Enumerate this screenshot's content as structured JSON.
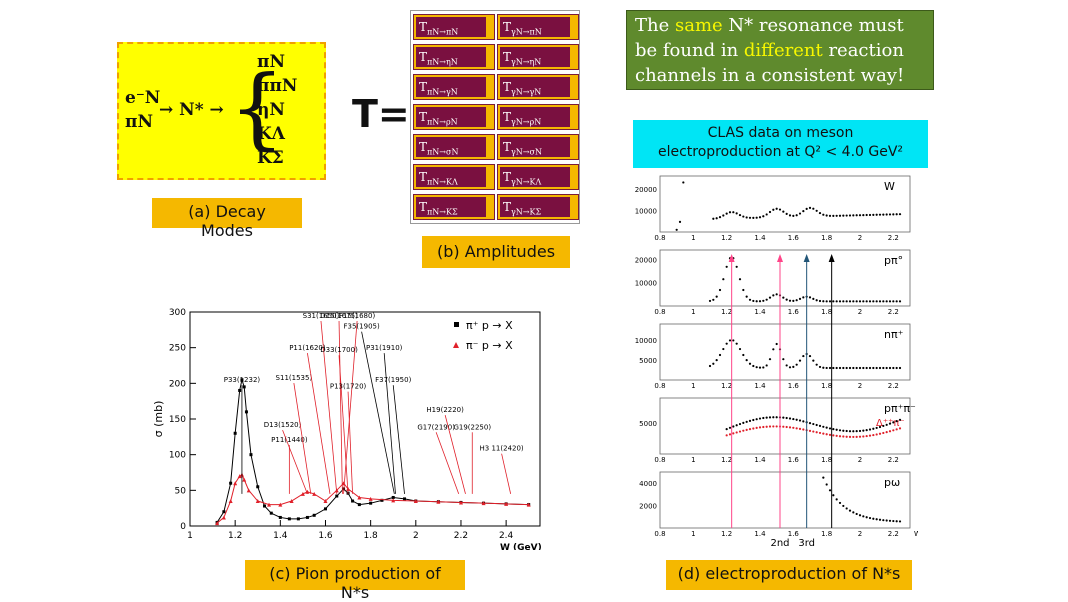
{
  "decay": {
    "initial_1": "e⁻N",
    "initial_2": "πN",
    "resonance": "→ N* →",
    "brace": "{",
    "channels": [
      "πN",
      "ππN",
      "ηN",
      "KΛ",
      "KΣ"
    ]
  },
  "caption_a": "(a) Decay Modes",
  "t_equals": "T=",
  "amplitudes": {
    "left": [
      "πN→πN",
      "πN→ηN",
      "πN→γN",
      "πN→ρN",
      "πN→σN",
      "πN→KΛ",
      "πN→KΣ"
    ],
    "right": [
      "γN→πN",
      "γN→ηN",
      "γN→γN",
      "γN→ρN",
      "γN→σN",
      "γN→KΛ",
      "γN→KΣ"
    ],
    "symbol": "T"
  },
  "caption_b": "(b) Amplitudes",
  "green_box": {
    "p1": "The ",
    "h1": "same",
    "p2": " N* resonance must be found in ",
    "h2": "different",
    "p3": " reaction channels in a consistent way!"
  },
  "clas_box": {
    "line1": "CLAS data on meson",
    "line2": "electroproduction at Q² < 4.0 GeV²"
  },
  "caption_c": "(c) Pion production of N*s",
  "caption_d": "(d) electroproduction of N*s",
  "colors": {
    "highlight": "#f7f700",
    "green": "#5f8a2d",
    "caption": "#f5b800",
    "cyan": "#00e5f5",
    "amp_cell": "#7a1040",
    "red": "#e0202a"
  },
  "chart_data": [
    {
      "type": "scatter",
      "title": "",
      "xlabel": "W (GeV)",
      "ylabel": "σ (mb)",
      "xlim": [
        1.0,
        2.55
      ],
      "ylim": [
        0,
        300
      ],
      "xticks": [
        "1",
        "1.2",
        "1.4",
        "1.6",
        "1.8",
        "2",
        "2.2",
        "2.4"
      ],
      "yticks": [
        "0",
        "50",
        "100",
        "150",
        "200",
        "250",
        "300"
      ],
      "legend_placement": "top-right",
      "series": [
        {
          "name": "π⁺ p → X",
          "color": "#000000",
          "x": [
            1.12,
            1.15,
            1.18,
            1.2,
            1.22,
            1.23,
            1.24,
            1.25,
            1.27,
            1.3,
            1.33,
            1.36,
            1.4,
            1.44,
            1.48,
            1.52,
            1.55,
            1.6,
            1.65,
            1.68,
            1.7,
            1.72,
            1.75,
            1.8,
            1.85,
            1.9,
            1.95,
            2.0,
            2.1,
            2.2,
            2.3,
            2.4,
            2.5
          ],
          "y": [
            5,
            20,
            60,
            130,
            190,
            205,
            195,
            160,
            100,
            55,
            28,
            18,
            12,
            10,
            10,
            12,
            15,
            24,
            42,
            52,
            46,
            35,
            30,
            32,
            36,
            40,
            38,
            35,
            34,
            33,
            32,
            31,
            30
          ]
        },
        {
          "name": "π⁻ p → X",
          "color": "#e0202a",
          "x": [
            1.12,
            1.15,
            1.18,
            1.2,
            1.22,
            1.23,
            1.24,
            1.26,
            1.3,
            1.35,
            1.4,
            1.45,
            1.5,
            1.52,
            1.55,
            1.6,
            1.65,
            1.68,
            1.7,
            1.75,
            1.8,
            1.9,
            2.0,
            2.1,
            2.2,
            2.3,
            2.4,
            2.5
          ],
          "y": [
            4,
            12,
            35,
            60,
            70,
            72,
            65,
            50,
            35,
            30,
            30,
            35,
            45,
            48,
            45,
            35,
            50,
            60,
            52,
            40,
            38,
            36,
            35,
            34,
            33,
            32,
            31,
            30
          ]
        }
      ],
      "annotations": [
        "P33(1232)",
        "P11(1440)",
        "D13(1520)",
        "S11(1535)",
        "P11(1620)",
        "S31(1650)",
        "D15(1675)",
        "F15(1680)",
        "D33(1700)",
        "P13(1720)",
        "F35(1905)",
        "P31(1910)",
        "F37(1950)",
        "G17(2190)",
        "H19(2220)",
        "G19(2250)",
        "H3 11(2420)"
      ]
    },
    {
      "type": "scatter",
      "title": "",
      "xlabel": "W(GeV)",
      "xlim": [
        0.8,
        2.3
      ],
      "xticks": [
        "0.8",
        "1",
        "1.2",
        "1.4",
        "1.6",
        "1.8",
        "2",
        "2.2"
      ],
      "panels": [
        {
          "label": "W",
          "yticks": [
            "10000",
            "20000"
          ],
          "ylim": [
            0,
            26000
          ]
        },
        {
          "label": "pπ°",
          "yticks": [
            "10000",
            "20000"
          ],
          "ylim": [
            0,
            24000
          ]
        },
        {
          "label": "nπ⁺",
          "yticks": [
            "5000",
            "10000"
          ],
          "ylim": [
            0,
            14000
          ]
        },
        {
          "label": "pπ⁺π⁻",
          "label2": "Δ⁺⁺π⁻",
          "yticks": [
            "5000"
          ],
          "ylim": [
            0,
            9000
          ]
        },
        {
          "label": "pω",
          "yticks": [
            "2000",
            "4000"
          ],
          "ylim": [
            0,
            5000
          ]
        }
      ],
      "markers": [
        "2nd",
        "3rd"
      ],
      "marker_w": [
        1.23,
        1.52,
        1.68,
        1.83
      ]
    }
  ]
}
